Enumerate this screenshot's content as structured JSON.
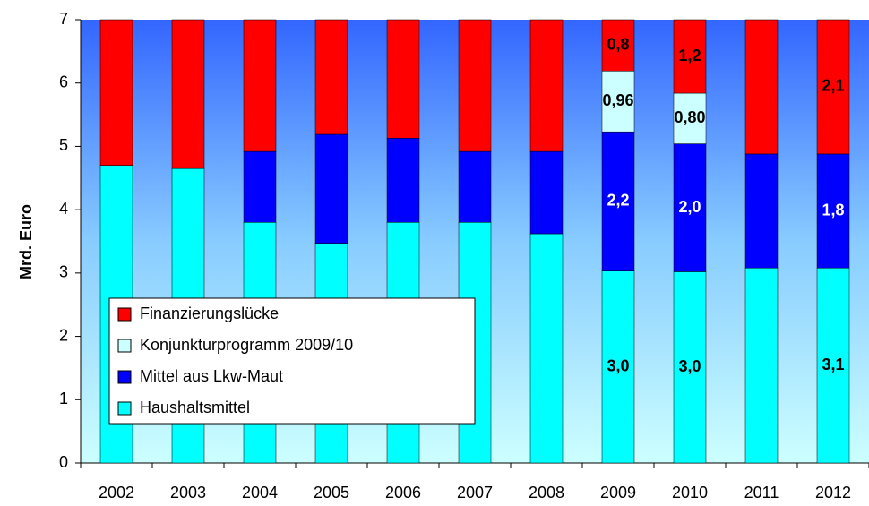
{
  "chart_data": {
    "type": "stacked_bar",
    "y_label": "Mrd. Euro",
    "categories": [
      "2002",
      "2003",
      "2004",
      "2005",
      "2006",
      "2007",
      "2008",
      "2009",
      "2010",
      "2011",
      "2012"
    ],
    "series": [
      {
        "name": "Haushaltsmittel",
        "color": "#00ffff",
        "label_color": "#000000",
        "values": [
          4.7,
          4.65,
          3.8,
          3.47,
          3.8,
          3.8,
          3.62,
          3.03,
          3.02,
          3.08,
          3.08
        ],
        "value_labels": [
          null,
          null,
          null,
          null,
          null,
          null,
          null,
          "3,0",
          "3,0",
          null,
          "3,1"
        ]
      },
      {
        "name": "Mittel aus Lkw-Maut",
        "color": "#0000ff",
        "label_color": "#ffffff",
        "values": [
          0,
          0,
          1.12,
          1.72,
          1.33,
          1.12,
          1.3,
          2.2,
          2.02,
          1.8,
          1.8
        ],
        "value_labels": [
          null,
          null,
          null,
          null,
          null,
          null,
          null,
          "2,2",
          "2,0",
          null,
          "1,8"
        ]
      },
      {
        "name": "Konjunkturprogramm 2009/10",
        "color": "#ccffff",
        "label_color": "#000000",
        "values": [
          0,
          0,
          0,
          0,
          0,
          0,
          0,
          0.96,
          0.8,
          0,
          0
        ],
        "value_labels": [
          null,
          null,
          null,
          null,
          null,
          null,
          null,
          "0,96",
          "0,80",
          null,
          null
        ]
      },
      {
        "name": "Finanzierungslücke",
        "color": "#ff0000",
        "label_color": "#000000",
        "values": [
          2.3,
          2.35,
          2.08,
          1.81,
          1.87,
          2.08,
          2.08,
          0.81,
          1.16,
          2.12,
          2.12
        ],
        "value_labels": [
          null,
          null,
          null,
          null,
          null,
          null,
          null,
          "0,8",
          "1,2",
          null,
          "2,1"
        ]
      }
    ],
    "ylim": [
      0,
      7
    ],
    "yticks": [
      0,
      1,
      2,
      3,
      4,
      5,
      6,
      7
    ]
  }
}
